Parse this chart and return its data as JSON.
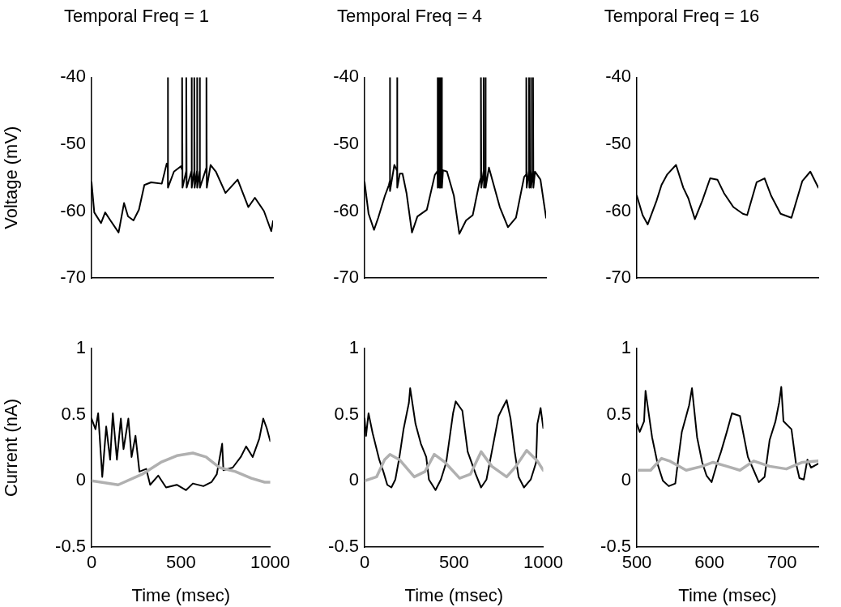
{
  "chart_data": [
    {
      "type": "line",
      "title": "Temporal Freq = 1",
      "ylabel": "Voltage (mV)",
      "xlim": [
        0,
        1000
      ],
      "ylim": [
        -70,
        -40
      ],
      "yticks": [
        -70,
        -60,
        -50,
        -40
      ],
      "tick_labels": "y",
      "grid": false,
      "legend": false,
      "marker": "none",
      "line_style": "solid",
      "series": [
        {
          "color": "#000000",
          "x": [
            0,
            15,
            52,
            75,
            104,
            149,
            179,
            201,
            231,
            261,
            291,
            328,
            387,
            414,
            420,
            420,
            422,
            454,
            492,
            499,
            499,
            501,
            522,
            522,
            524,
            551,
            551,
            553,
            566,
            566,
            568,
            581,
            581,
            583,
            596,
            596,
            598,
            633,
            633,
            635,
            656,
            685,
            738,
            805,
            864,
            900,
            950,
            990,
            1000
          ],
          "values": [
            -55.7,
            -60.2,
            -61.8,
            -60.2,
            -61.4,
            -63.2,
            -58.8,
            -60.8,
            -61.4,
            -59.8,
            -56.1,
            -55.7,
            -55.9,
            -52.9,
            -53.5,
            -40,
            -56.5,
            -54.1,
            -53.3,
            -53.8,
            -40,
            -56.5,
            -54,
            -40,
            -56.5,
            -54,
            -40,
            -56.5,
            -54,
            -40,
            -56.5,
            -54,
            -40,
            -56.5,
            -54,
            -40,
            -56.5,
            -53.5,
            -40,
            -56.5,
            -53.1,
            -54.1,
            -57.3,
            -55.3,
            -59.4,
            -58,
            -60,
            -63,
            -61.5
          ]
        }
      ]
    },
    {
      "type": "line",
      "title": "Temporal Freq = 4",
      "xlim": [
        0,
        1000
      ],
      "ylim": [
        -70,
        -40
      ],
      "yticks": [
        -70,
        -60,
        -50,
        -40
      ],
      "tick_labels": "y",
      "grid": false,
      "legend": false,
      "marker": "none",
      "line_style": "solid",
      "series": [
        {
          "color": "#000000",
          "x": [
            0,
            22,
            52,
            75,
            112,
            134,
            139,
            139,
            141,
            164,
            179,
            179,
            181,
            194,
            209,
            231,
            261,
            291,
            343,
            387,
            402,
            402,
            404,
            410,
            410,
            412,
            417,
            417,
            419,
            425,
            425,
            427,
            432,
            454,
            492,
            522,
            559,
            596,
            633,
            641,
            641,
            643,
            656,
            656,
            658,
            666,
            666,
            668,
            685,
            745,
            790,
            834,
            879,
            891,
            891,
            893,
            906,
            906,
            908,
            916,
            916,
            918,
            928,
            928,
            930,
            939,
            969,
            1000
          ],
          "values": [
            -55.7,
            -60.4,
            -62.8,
            -61,
            -57.7,
            -56.1,
            -55.5,
            -40,
            -57,
            -53.1,
            -54,
            -40,
            -56.5,
            -54.4,
            -54.4,
            -57.3,
            -63.2,
            -60.8,
            -59.8,
            -54.6,
            -54,
            -40,
            -56.5,
            -54,
            -40,
            -56.5,
            -54,
            -40,
            -56.5,
            -54,
            -40,
            -56.5,
            -53.9,
            -54.1,
            -57.7,
            -63.4,
            -61.4,
            -60.6,
            -55.7,
            -55,
            -40,
            -56.5,
            -54,
            -40,
            -56.5,
            -54,
            -40,
            -56.5,
            -53.5,
            -59.4,
            -62.4,
            -61,
            -54.9,
            -54.5,
            -40,
            -56.5,
            -54,
            -40,
            -56.5,
            -54,
            -40,
            -56.5,
            -54,
            -40,
            -56.5,
            -54.1,
            -55.3,
            -61
          ]
        }
      ]
    },
    {
      "type": "line",
      "title": "Temporal Freq = 16",
      "xlim": [
        500,
        750
      ],
      "ylim": [
        -70,
        -40
      ],
      "yticks": [
        -70,
        -60,
        -50,
        -40
      ],
      "tick_labels": "y",
      "grid": false,
      "legend": false,
      "marker": "none",
      "line_style": "solid",
      "series": [
        {
          "color": "#000000",
          "x": [
            500,
            508,
            515,
            527,
            534,
            542,
            554,
            564,
            571,
            580,
            590,
            601,
            611,
            620,
            633,
            646,
            652,
            665,
            676,
            685,
            698,
            713,
            728,
            739,
            750
          ],
          "values": [
            -57.7,
            -60.6,
            -62,
            -58.5,
            -56.1,
            -54.5,
            -53.1,
            -56.5,
            -58.1,
            -61.2,
            -58.5,
            -55.1,
            -55.3,
            -57.3,
            -59.4,
            -60.4,
            -60.6,
            -55.7,
            -55.1,
            -57.7,
            -60.4,
            -61,
            -55.5,
            -54.1,
            -56.5
          ]
        }
      ]
    },
    {
      "type": "line",
      "xlabel": "Time (msec)",
      "ylabel": "Current (nA)",
      "xlim": [
        0,
        1000
      ],
      "xticks": [
        0,
        500,
        1000
      ],
      "ylim": [
        -0.5,
        1
      ],
      "yticks": [
        -0.5,
        0,
        0.5,
        1
      ],
      "grid": false,
      "legend": false,
      "marker": "none",
      "line_style": "solid",
      "series": [
        {
          "color": "#000000",
          "x": [
            0,
            22,
            37,
            60,
            82,
            104,
            119,
            142,
            164,
            179,
            206,
            224,
            246,
            268,
            306,
            328,
            373,
            417,
            477,
            529,
            567,
            626,
            671,
            701,
            731,
            738,
            790,
            835,
            865,
            902,
            939,
            961,
            980,
            1000
          ],
          "values": [
            0.47,
            0.39,
            0.51,
            0.03,
            0.41,
            0.16,
            0.51,
            0.16,
            0.47,
            0.24,
            0.47,
            0.18,
            0.34,
            0.07,
            0.09,
            -0.03,
            0.04,
            -0.05,
            -0.03,
            -0.07,
            -0.02,
            -0.04,
            -0.01,
            0.05,
            0.28,
            0.08,
            0.1,
            0.18,
            0.26,
            0.18,
            0.32,
            0.47,
            0.4,
            0.3
          ]
        },
        {
          "color": "#b0b0b0",
          "x": [
            0,
            149,
            283,
            388,
            477,
            567,
            641,
            716,
            805,
            894,
            969,
            1000
          ],
          "values": [
            0,
            -0.03,
            0.05,
            0.14,
            0.19,
            0.21,
            0.18,
            0.1,
            0.07,
            0.02,
            -0.01,
            -0.01
          ]
        }
      ]
    },
    {
      "type": "line",
      "xlabel": "Time (msec)",
      "xlim": [
        0,
        1000
      ],
      "xticks": [
        0,
        500,
        1000
      ],
      "ylim": [
        -0.5,
        1
      ],
      "yticks": [
        -0.5,
        0,
        0.5,
        1
      ],
      "grid": false,
      "legend": false,
      "marker": "none",
      "line_style": "solid",
      "series": [
        {
          "color": "#000000",
          "x": [
            0,
            8,
            22,
            45,
            82,
            105,
            127,
            150,
            172,
            195,
            218,
            248,
            255,
            285,
            315,
            345,
            360,
            397,
            427,
            457,
            495,
            510,
            547,
            577,
            622,
            652,
            682,
            712,
            750,
            772,
            795,
            817,
            840,
            862,
            892,
            930,
            960,
            967,
            985,
            1000
          ],
          "values": [
            0.47,
            0.34,
            0.51,
            0.36,
            0.16,
            0.07,
            -0.03,
            -0.05,
            0.01,
            0.18,
            0.39,
            0.59,
            0.7,
            0.43,
            0.28,
            0.18,
            0.01,
            -0.07,
            0.01,
            0.14,
            0.51,
            0.6,
            0.53,
            0.22,
            0.05,
            -0.05,
            0.01,
            0.22,
            0.49,
            0.55,
            0.61,
            0.47,
            0.22,
            0.03,
            -0.05,
            0.01,
            0.14,
            0.43,
            0.55,
            0.4
          ]
        },
        {
          "color": "#b0b0b0",
          "x": [
            0,
            67,
            112,
            142,
            195,
            278,
            338,
            390,
            450,
            532,
            592,
            652,
            712,
            795,
            847,
            907,
            967,
            1000
          ],
          "values": [
            0,
            0.03,
            0.16,
            0.2,
            0.16,
            0.03,
            0.07,
            0.2,
            0.14,
            0.02,
            0.05,
            0.22,
            0.11,
            0.03,
            0.11,
            0.23,
            0.15,
            0.08
          ]
        }
      ]
    },
    {
      "type": "line",
      "xlabel": "Time (msec)",
      "xlim": [
        500,
        750
      ],
      "xticks": [
        500,
        600,
        700
      ],
      "ylim": [
        -0.5,
        1
      ],
      "yticks": [
        -0.5,
        0,
        0.5,
        1
      ],
      "grid": false,
      "legend": false,
      "marker": "none",
      "line_style": "solid",
      "series": [
        {
          "color": "#000000",
          "x": [
            500,
            504,
            510,
            512,
            521,
            529,
            536,
            544,
            553,
            557,
            562,
            572,
            576,
            583,
            590,
            596,
            603,
            611,
            616,
            624,
            631,
            642,
            653,
            661,
            668,
            676,
            683,
            691,
            696,
            699,
            702,
            713,
            719,
            724,
            730,
            735,
            740,
            750
          ],
          "values": [
            0.43,
            0.37,
            0.45,
            0.68,
            0.33,
            0.12,
            0,
            -0.04,
            -0.02,
            0.16,
            0.37,
            0.57,
            0.7,
            0.33,
            0.14,
            0.04,
            -0.01,
            0.14,
            0.22,
            0.37,
            0.51,
            0.49,
            0.18,
            0.08,
            -0.01,
            0.03,
            0.31,
            0.45,
            0.59,
            0.71,
            0.45,
            0.39,
            0.14,
            0.02,
            0.01,
            0.16,
            0.1,
            0.13
          ]
        },
        {
          "color": "#b0b0b0",
          "x": [
            500,
            519,
            534,
            545,
            568,
            590,
            605,
            624,
            642,
            661,
            683,
            706,
            728,
            750
          ],
          "values": [
            0.08,
            0.08,
            0.17,
            0.15,
            0.08,
            0.11,
            0.14,
            0.11,
            0.08,
            0.15,
            0.11,
            0.09,
            0.14,
            0.15
          ]
        }
      ]
    }
  ]
}
